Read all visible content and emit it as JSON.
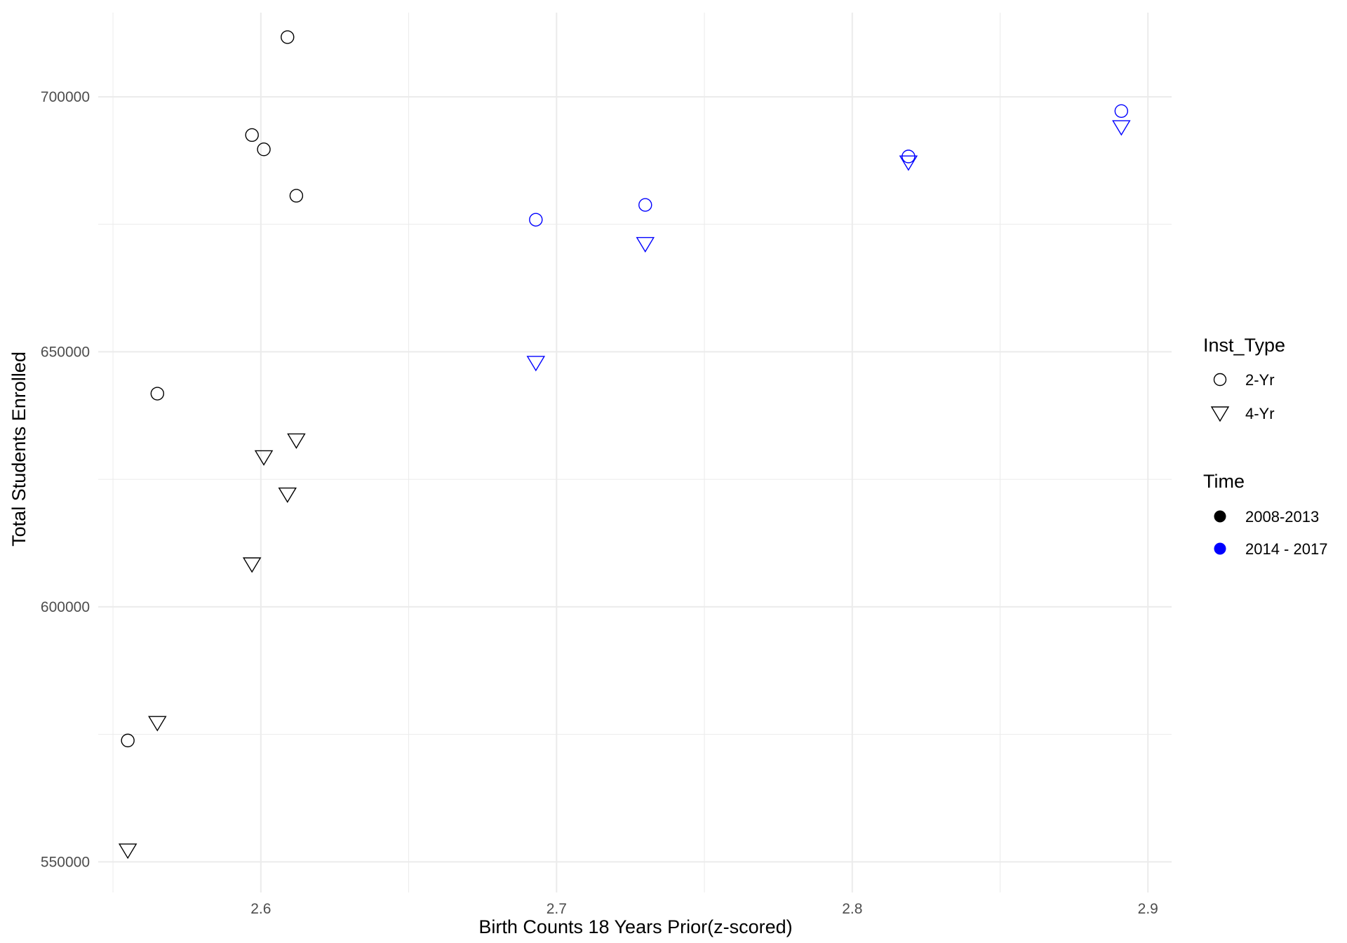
{
  "chart_data": {
    "type": "scatter",
    "title": "",
    "xlabel": "Birth Counts 18 Years Prior(z-scored)",
    "ylabel": "Total Students Enrolled",
    "xlim": [
      2.545,
      2.908
    ],
    "ylim": [
      544000,
      716500
    ],
    "x_major_ticks": [
      2.6,
      2.7,
      2.8,
      2.9
    ],
    "x_minor_ticks": [
      2.55,
      2.65,
      2.75,
      2.85
    ],
    "y_major_ticks": [
      550000,
      600000,
      650000,
      700000
    ],
    "y_minor_ticks": [
      575000,
      625000,
      675000
    ],
    "x_tick_labels": [
      "2.6",
      "2.7",
      "2.8",
      "2.9"
    ],
    "y_tick_labels": [
      "550000",
      "600000",
      "650000",
      "700000"
    ],
    "grid": true,
    "colors": {
      "2008-2013": "#000000",
      "2014 - 2017": "#0000ff",
      "grid": "#ebebeb"
    },
    "legend": {
      "placement": "right",
      "shape_title": "Inst_Type",
      "shape_entries": [
        {
          "label": "2-Yr",
          "shape": "circle"
        },
        {
          "label": "4-Yr",
          "shape": "triangle-down"
        }
      ],
      "color_title": "Time",
      "color_entries": [
        {
          "label": "2008-2013",
          "color": "#000000"
        },
        {
          "label": "2014 - 2017",
          "color": "#0000ff"
        }
      ]
    },
    "points": [
      {
        "x": 2.555,
        "y": 573800,
        "inst_type": "2-Yr",
        "time": "2008-2013"
      },
      {
        "x": 2.555,
        "y": 552400,
        "inst_type": "4-Yr",
        "time": "2008-2013"
      },
      {
        "x": 2.565,
        "y": 641800,
        "inst_type": "2-Yr",
        "time": "2008-2013"
      },
      {
        "x": 2.565,
        "y": 577400,
        "inst_type": "4-Yr",
        "time": "2008-2013"
      },
      {
        "x": 2.597,
        "y": 692500,
        "inst_type": "2-Yr",
        "time": "2008-2013"
      },
      {
        "x": 2.597,
        "y": 608500,
        "inst_type": "4-Yr",
        "time": "2008-2013"
      },
      {
        "x": 2.601,
        "y": 689700,
        "inst_type": "2-Yr",
        "time": "2008-2013"
      },
      {
        "x": 2.601,
        "y": 629500,
        "inst_type": "4-Yr",
        "time": "2008-2013"
      },
      {
        "x": 2.609,
        "y": 711700,
        "inst_type": "2-Yr",
        "time": "2008-2013"
      },
      {
        "x": 2.609,
        "y": 622200,
        "inst_type": "4-Yr",
        "time": "2008-2013"
      },
      {
        "x": 2.612,
        "y": 680600,
        "inst_type": "2-Yr",
        "time": "2008-2013"
      },
      {
        "x": 2.612,
        "y": 632800,
        "inst_type": "4-Yr",
        "time": "2008-2013"
      },
      {
        "x": 2.693,
        "y": 675900,
        "inst_type": "2-Yr",
        "time": "2014 - 2017"
      },
      {
        "x": 2.693,
        "y": 648000,
        "inst_type": "4-Yr",
        "time": "2014 - 2017"
      },
      {
        "x": 2.73,
        "y": 678800,
        "inst_type": "2-Yr",
        "time": "2014 - 2017"
      },
      {
        "x": 2.73,
        "y": 671300,
        "inst_type": "4-Yr",
        "time": "2014 - 2017"
      },
      {
        "x": 2.819,
        "y": 688300,
        "inst_type": "2-Yr",
        "time": "2014 - 2017"
      },
      {
        "x": 2.819,
        "y": 687300,
        "inst_type": "4-Yr",
        "time": "2014 - 2017"
      },
      {
        "x": 2.891,
        "y": 697200,
        "inst_type": "2-Yr",
        "time": "2014 - 2017"
      },
      {
        "x": 2.891,
        "y": 694200,
        "inst_type": "4-Yr",
        "time": "2014 - 2017"
      }
    ]
  }
}
